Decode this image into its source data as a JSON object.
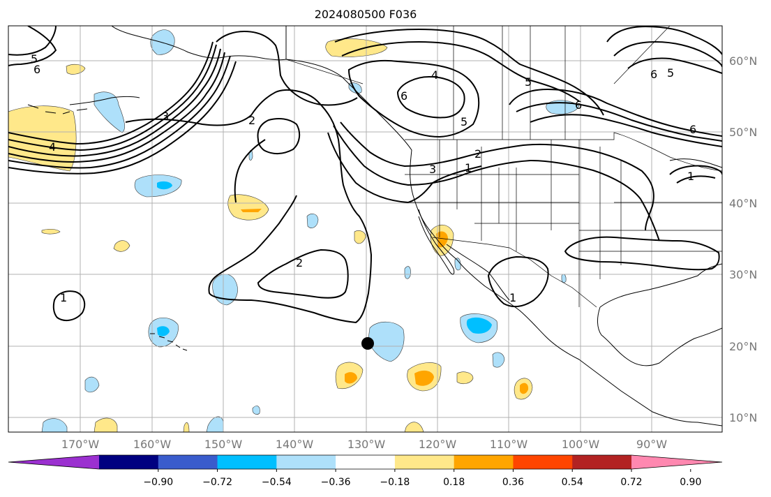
{
  "title": "2024080500 F036",
  "lon_labels": [
    "170°W",
    "160°W",
    "150°W",
    "140°W",
    "130°W",
    "120°W",
    "110°W",
    "100°W",
    "90°W"
  ],
  "lat_labels": [
    "60°N",
    "50°N",
    "40°N",
    "30°N",
    "20°N",
    "10°N"
  ],
  "contour_labels": [
    "1",
    "2",
    "3",
    "4",
    "5",
    "6"
  ],
  "colorbar": {
    "ticks": [
      "−0.90",
      "−0.72",
      "−0.54",
      "−0.36",
      "−0.18",
      "0.18",
      "0.36",
      "0.54",
      "0.72",
      "0.90"
    ],
    "colors": [
      "#9b30d0",
      "#000080",
      "#3a5ccc",
      "#00bfff",
      "#aee0fa",
      "#ffffff",
      "#ffe88a",
      "#ffa500",
      "#ff4500",
      "#b22222",
      "#ff88b0"
    ]
  },
  "shading": {
    "positive_light": "#ffe88a",
    "positive_mid": "#ffa500",
    "negative_light": "#aee0fa",
    "negative_mid": "#00bfff"
  },
  "marker": {
    "label": "storm-center"
  }
}
